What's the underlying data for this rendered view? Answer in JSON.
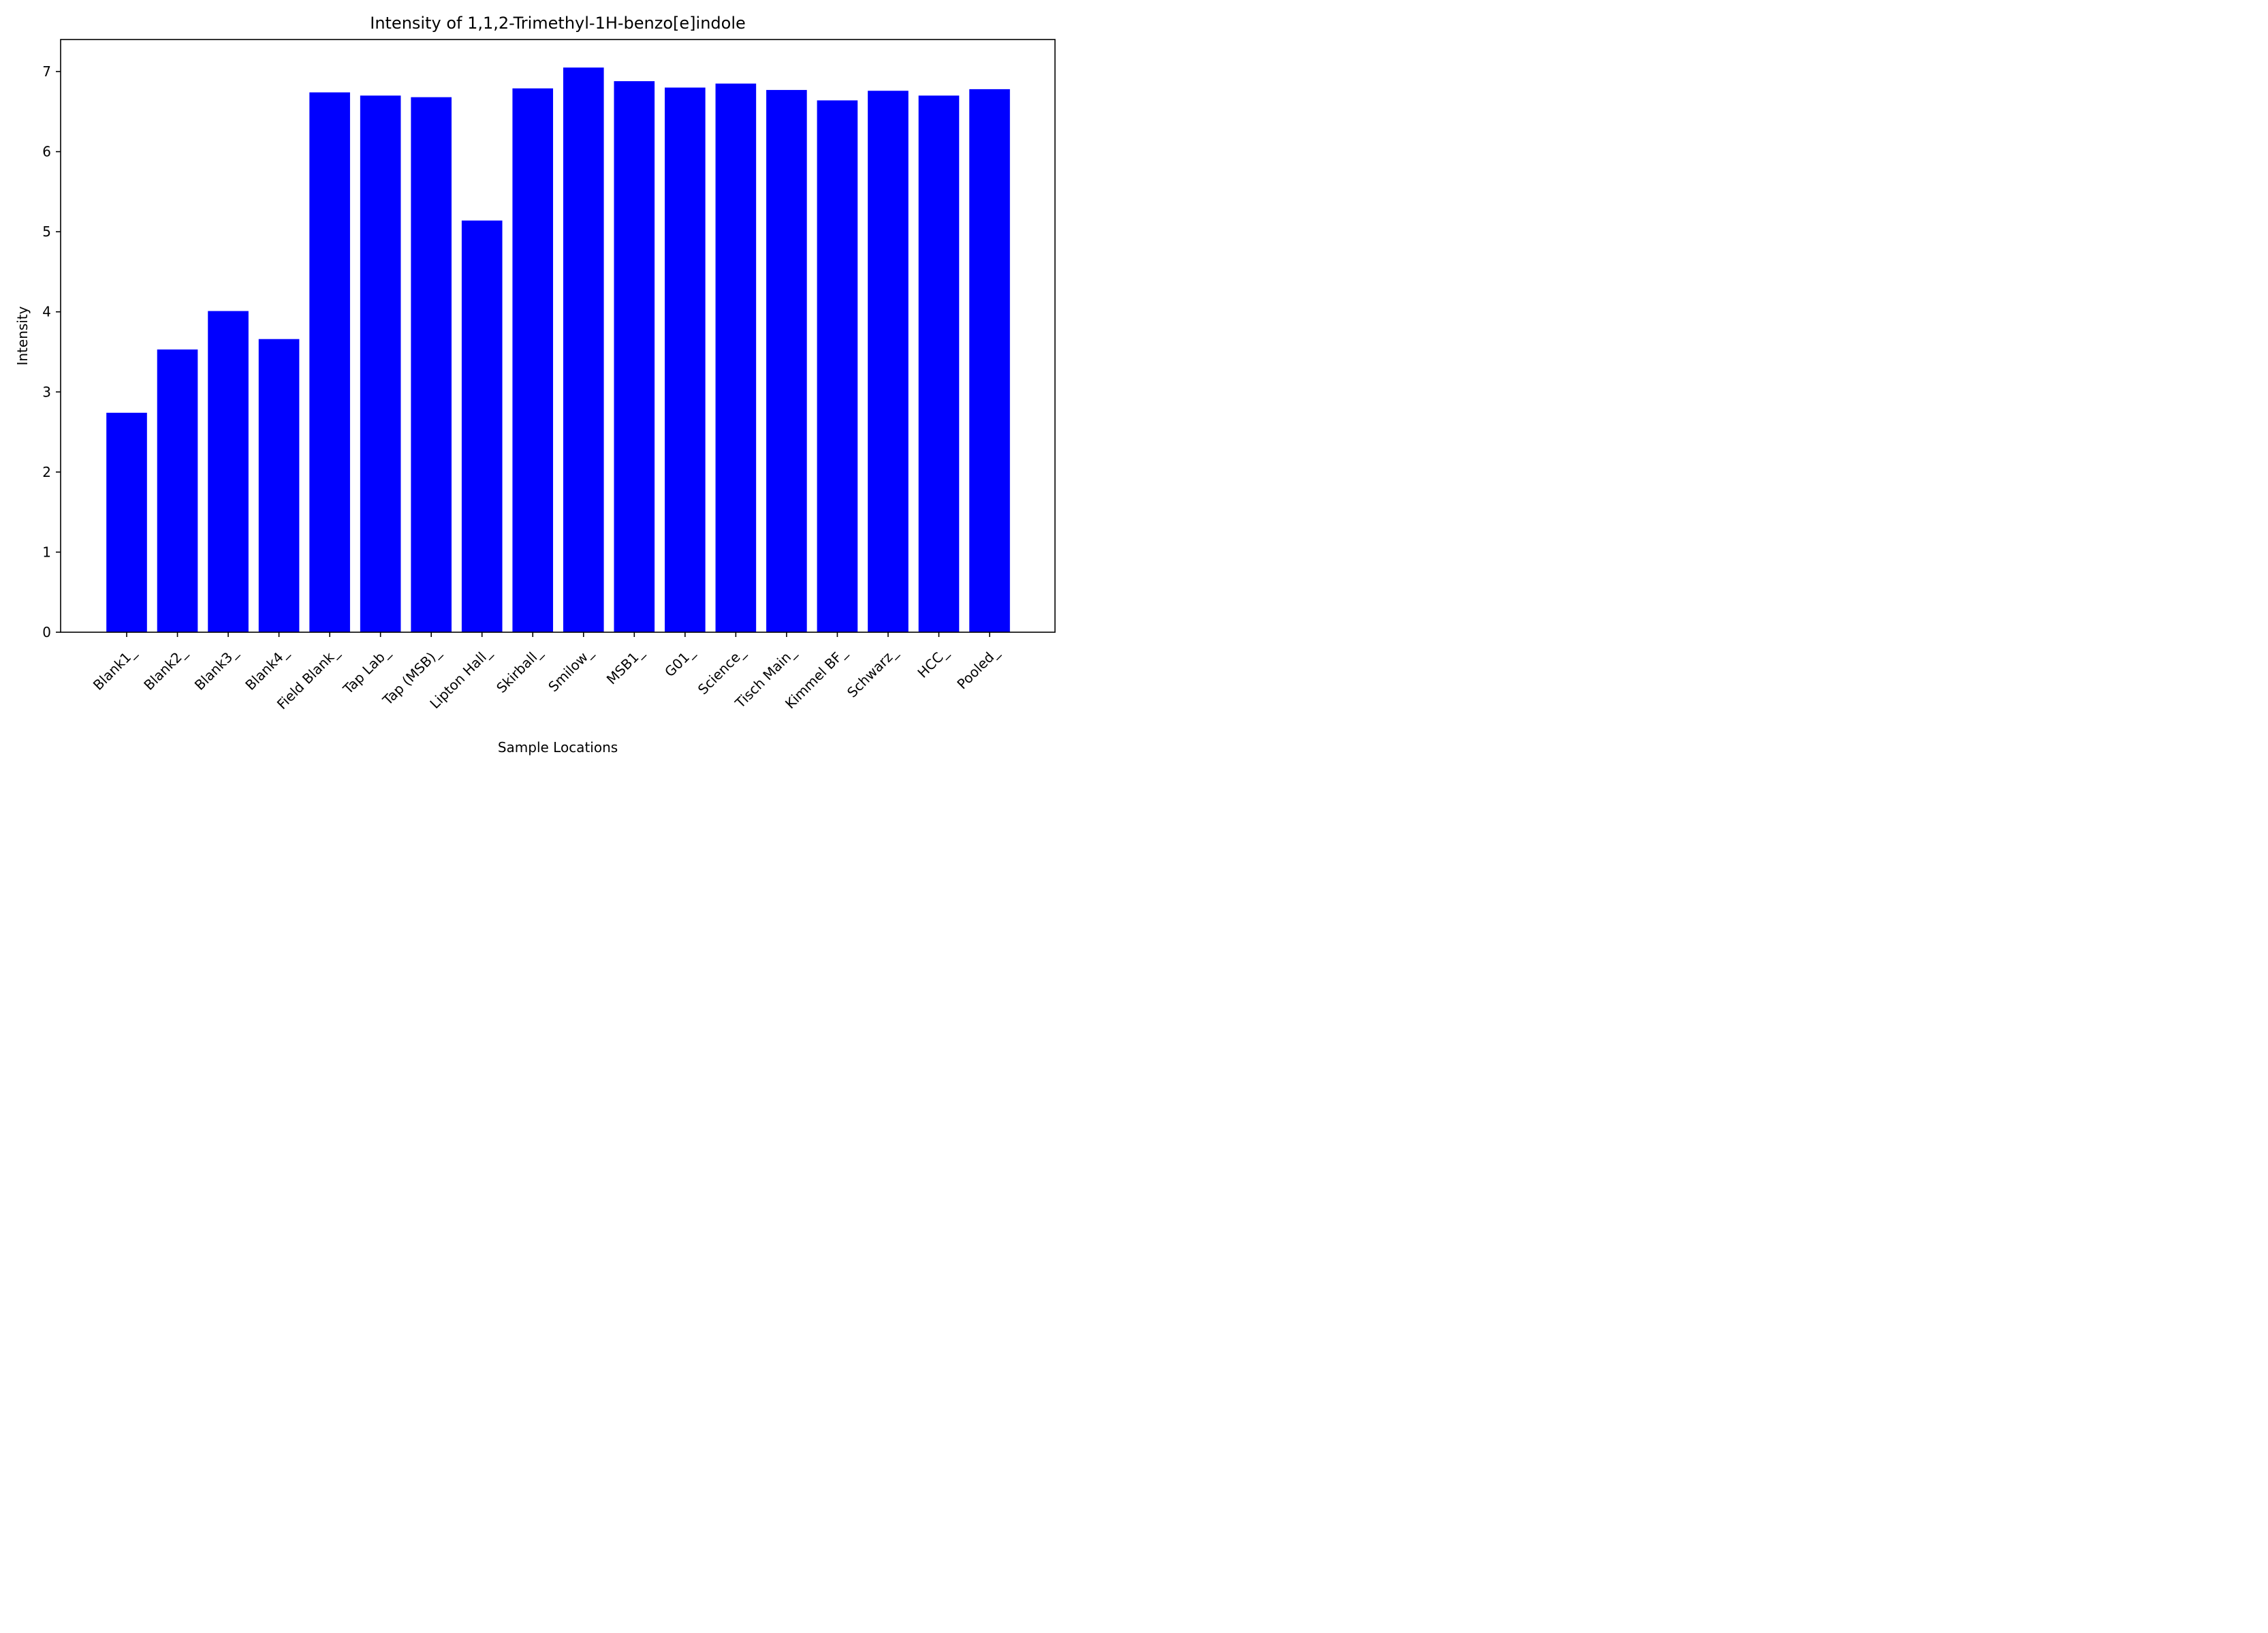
{
  "chart_data": {
    "type": "bar",
    "title": "Intensity of 1,1,2-Trimethyl-1H-benzo[e]indole",
    "xlabel": "Sample Locations",
    "ylabel": "Intensity",
    "categories": [
      "Blank1_",
      "Blank2_",
      "Blank3_",
      "Blank4_",
      "Field Blank_",
      "Tap Lab_",
      "Tap (MSB)_",
      "Lipton Hall_",
      "Skirball_",
      "Smilow_",
      "MSB1_",
      "G01_",
      "Science_",
      "Tisch Main_",
      "Kimmel BF_",
      "Schwarz_",
      "HCC_",
      "Pooled_"
    ],
    "values": [
      2.74,
      3.53,
      4.01,
      3.66,
      6.74,
      6.7,
      6.68,
      5.14,
      6.79,
      7.05,
      6.88,
      6.8,
      6.85,
      6.77,
      6.64,
      6.76,
      6.7,
      6.78
    ],
    "ylim": [
      0,
      7.4
    ],
    "yticks": [
      "0",
      "1",
      "2",
      "3",
      "4",
      "5",
      "6",
      "7"
    ],
    "grid": false,
    "bar_color": "#0000ff"
  }
}
